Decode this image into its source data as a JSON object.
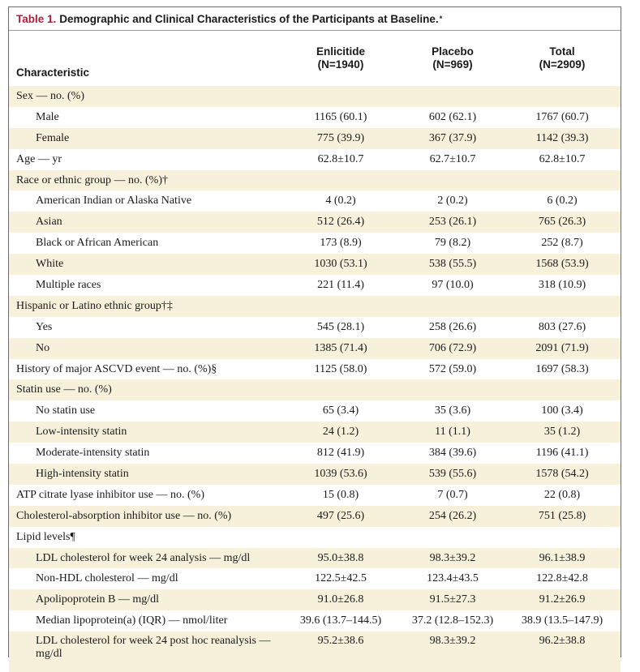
{
  "table": {
    "number": "Table 1.",
    "title": "Demographic and Clinical Characteristics of the Participants at Baseline.",
    "title_mark": "*",
    "columns": [
      {
        "label": "Characteristic",
        "n": ""
      },
      {
        "label": "Enlicitide",
        "n": "(N=1940)"
      },
      {
        "label": "Placebo",
        "n": "(N=969)"
      },
      {
        "label": "Total",
        "n": "(N=2909)"
      }
    ],
    "rows": [
      {
        "label": "Sex — no. (%)",
        "values": [
          "",
          "",
          ""
        ]
      },
      {
        "label": "Male",
        "values": [
          "1165 (60.1)",
          "602 (62.1)",
          "1767 (60.7)"
        ]
      },
      {
        "label": "Female",
        "values": [
          "775 (39.9)",
          "367 (37.9)",
          "1142 (39.3)"
        ]
      },
      {
        "label": "Age — yr",
        "values": [
          "62.8±10.7",
          "62.7±10.7",
          "62.8±10.7"
        ]
      },
      {
        "label": "Race or ethnic group — no. (%)†",
        "values": [
          "",
          "",
          ""
        ]
      },
      {
        "label": "American Indian or Alaska Native",
        "values": [
          "4 (0.2)",
          "2 (0.2)",
          "6 (0.2)"
        ]
      },
      {
        "label": "Asian",
        "values": [
          "512 (26.4)",
          "253 (26.1)",
          "765 (26.3)"
        ]
      },
      {
        "label": "Black or African American",
        "values": [
          "173 (8.9)",
          "79 (8.2)",
          "252 (8.7)"
        ]
      },
      {
        "label": "White",
        "values": [
          "1030 (53.1)",
          "538 (55.5)",
          "1568 (53.9)"
        ]
      },
      {
        "label": "Multiple races",
        "values": [
          "221 (11.4)",
          "97 (10.0)",
          "318 (10.9)"
        ]
      },
      {
        "label": "Hispanic or Latino ethnic group†‡",
        "values": [
          "",
          "",
          ""
        ]
      },
      {
        "label": "Yes",
        "values": [
          "545 (28.1)",
          "258 (26.6)",
          "803 (27.6)"
        ]
      },
      {
        "label": "No",
        "values": [
          "1385 (71.4)",
          "706 (72.9)",
          "2091 (71.9)"
        ]
      },
      {
        "label": "History of major ASCVD event — no. (%)§",
        "values": [
          "1125 (58.0)",
          "572 (59.0)",
          "1697 (58.3)"
        ]
      },
      {
        "label": "Statin use — no. (%)",
        "values": [
          "",
          "",
          ""
        ]
      },
      {
        "label": "No statin use",
        "values": [
          "65 (3.4)",
          "35 (3.6)",
          "100 (3.4)"
        ]
      },
      {
        "label": "Low-intensity statin",
        "values": [
          "24 (1.2)",
          "11 (1.1)",
          "35 (1.2)"
        ]
      },
      {
        "label": "Moderate-intensity statin",
        "values": [
          "812 (41.9)",
          "384 (39.6)",
          "1196 (41.1)"
        ]
      },
      {
        "label": "High-intensity statin",
        "values": [
          "1039 (53.6)",
          "539 (55.6)",
          "1578 (54.2)"
        ]
      },
      {
        "label": "ATP citrate lyase inhibitor use — no. (%)",
        "values": [
          "15 (0.8)",
          "7 (0.7)",
          "22 (0.8)"
        ]
      },
      {
        "label": "Cholesterol-absorption inhibitor use — no. (%)",
        "values": [
          "497 (25.6)",
          "254 (26.2)",
          "751 (25.8)"
        ]
      },
      {
        "label": "Lipid levels¶",
        "values": [
          "",
          "",
          ""
        ]
      },
      {
        "label": "LDL cholesterol for week 24 analysis — mg/dl",
        "values": [
          "95.0±38.8",
          "98.3±39.2",
          "96.1±38.9"
        ]
      },
      {
        "label": "Non-HDL cholesterol — mg/dl",
        "values": [
          "122.5±42.5",
          "123.4±43.5",
          "122.8±42.8"
        ]
      },
      {
        "label": "Apolipoprotein B — mg/dl",
        "values": [
          "91.0±26.8",
          "91.5±27.3",
          "91.2±26.9"
        ]
      },
      {
        "label": "Median lipoprotein(a) (IQR) — nmol/liter",
        "values": [
          "39.6 (13.7–144.5)",
          "37.2 (12.8–152.3)",
          "38.9 (13.5–147.9)"
        ]
      },
      {
        "label": "LDL cholesterol for week 24 post hoc reanalysis — mg/dl",
        "values": [
          "95.2±38.6",
          "98.3±39.2",
          "96.2±38.8"
        ]
      }
    ]
  }
}
